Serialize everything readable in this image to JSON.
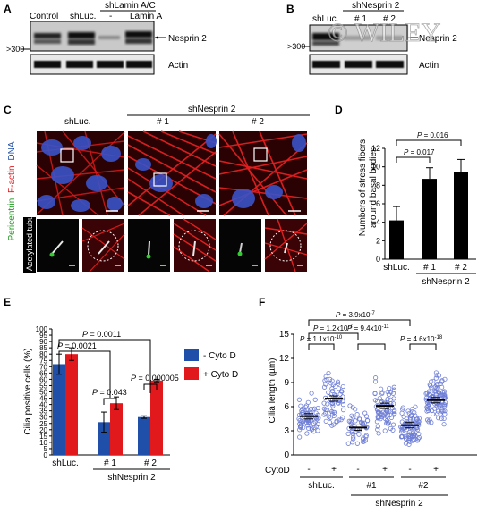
{
  "panels": {
    "A": {
      "label": "A",
      "lanes": [
        "Control",
        "shLuc.",
        "-",
        "Lamin A"
      ],
      "group": "shLamin A/C",
      "band": "Nesprin 2",
      "marker": ">300",
      "loading": "Actin"
    },
    "B": {
      "label": "B",
      "lanes": [
        "shLuc.",
        "# 1",
        "# 2"
      ],
      "group": "shNesprin 2",
      "band": "Nesprin 2",
      "marker": ">300",
      "loading": "Actin"
    },
    "C": {
      "label": "C",
      "col_labels": [
        "shLuc.",
        "# 1",
        "# 2"
      ],
      "group": "shNesprin 2",
      "stain_pericentrin": "Pericentrin",
      "stain_factin": "F-actin",
      "stain_dna": "DNA",
      "stain_tubulin": "Acetylated tubulin"
    },
    "D": {
      "label": "D"
    },
    "E": {
      "label": "E"
    },
    "F": {
      "label": "F"
    }
  },
  "watermark": "© WILEY",
  "colors": {
    "red": "#e1191c",
    "blue": "#1f4fa8",
    "green": "#33cc33",
    "actin_red": "#d81a1a",
    "scatter": "#6f7fd6"
  },
  "chart_data": [
    {
      "panel": "D",
      "type": "bar",
      "categories": [
        "shLuc.",
        "# 1",
        "# 2"
      ],
      "values": [
        4.2,
        8.7,
        9.4
      ],
      "errors": [
        1.5,
        1.2,
        1.4
      ],
      "ylabel": "Numbers of stress fibers around basal bodies",
      "ylim": [
        0,
        12
      ],
      "yticks": [
        0,
        2,
        4,
        6,
        8,
        10,
        12
      ],
      "group_label": "shNesprin 2",
      "pvalues": [
        {
          "text": "P = 0.017",
          "from": 0,
          "to": 1
        },
        {
          "text": "P = 0.016",
          "from": 0,
          "to": 2
        }
      ]
    },
    {
      "panel": "E",
      "type": "bar",
      "categories": [
        "shLuc.",
        "# 1",
        "# 2"
      ],
      "series": [
        {
          "name": "- Cyto D",
          "values": [
            72,
            26,
            30
          ],
          "errors": [
            8,
            8,
            1
          ]
        },
        {
          "name": "+ Cyto D",
          "values": [
            80,
            41,
            59
          ],
          "errors": [
            5,
            5,
            1
          ]
        }
      ],
      "ylabel": "Cilia positive cells (%)",
      "ylim": [
        0,
        100
      ],
      "yticks": [
        0,
        5,
        10,
        15,
        20,
        25,
        30,
        35,
        40,
        45,
        50,
        55,
        60,
        65,
        70,
        75,
        80,
        85,
        90,
        95,
        100
      ],
      "group_label": "shNesprin 2",
      "legend": "right",
      "pvalues": [
        {
          "text": "P = 0.0011",
          "label": "P = 0.0011"
        },
        {
          "text": "P = 0.0021",
          "label": "P = 0.0021"
        },
        {
          "text": "P = 0.043",
          "label": "P = 0.043"
        },
        {
          "text": "P = 0.000005",
          "label": "P = 0.000005"
        }
      ]
    },
    {
      "panel": "F",
      "type": "scatter",
      "categories": [
        "-",
        "+",
        "-",
        "+",
        "-",
        "+"
      ],
      "group_labels": [
        "shLuc.",
        "#1",
        "#2"
      ],
      "means": [
        4.8,
        7.0,
        3.4,
        6.1,
        3.7,
        6.8
      ],
      "counts": [
        70,
        70,
        50,
        80,
        90,
        110
      ],
      "ylabel": "Cilia length (µm)",
      "xlabel": "CytoD",
      "ylim": [
        0,
        15
      ],
      "yticks": [
        0,
        3,
        6,
        9,
        12,
        15
      ],
      "group_label": "shNesprin 2",
      "pvalues": [
        {
          "text": "P = 3.9x10",
          "exp": "-7"
        },
        {
          "text": "P = 1.2x10",
          "exp": "-7"
        },
        {
          "text": "P = 1.1x10",
          "exp": "-10"
        },
        {
          "text": "P = 9.4x10",
          "exp": "-11"
        },
        {
          "text": "P = 4.6x10",
          "exp": "-18"
        }
      ]
    }
  ]
}
